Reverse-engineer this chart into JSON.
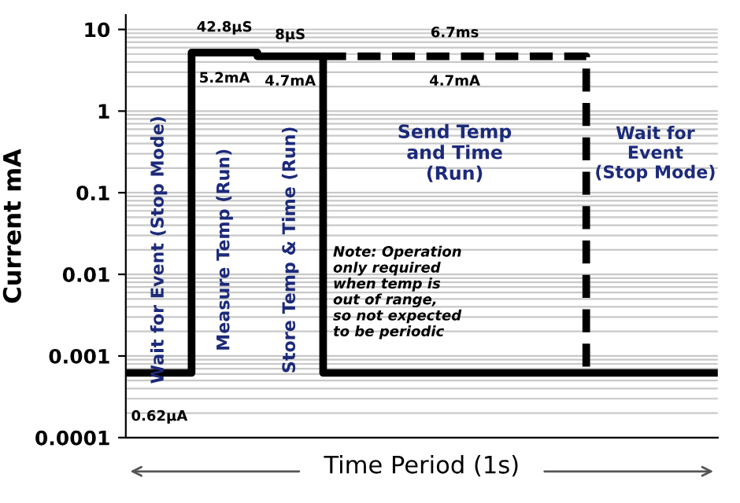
{
  "chart_data": {
    "type": "step",
    "ylabel": "Current mA",
    "xlabel": "Time Period (1s)",
    "categories": [
      null,
      null,
      null,
      null,
      null,
      null,
      null,
      null,
      null,
      null
    ],
    "series": [
      {
        "color": "#000000",
        "line_style": "solid",
        "values": [
          0.00062,
          5.2,
          4.7,
          0.00062,
          0.00062,
          0.00062,
          0.00062,
          0.00062,
          0.00062,
          0.00062
        ]
      },
      {
        "color": "#000000",
        "line_style": "dashed",
        "values": [
          null,
          null,
          null,
          4.7,
          4.7,
          4.7,
          4.7,
          0.00062,
          null,
          null
        ]
      }
    ],
    "log": true,
    "ylim": [
      0.0001,
      15
    ],
    "yticks": [
      0.0001,
      0.001,
      0.01,
      0.1,
      1,
      10
    ],
    "tick_labels": "y",
    "grid": "y",
    "annotations": [
      "42.8µS",
      "5.2mA",
      "8µS",
      "4.7mA",
      "6.7ms",
      "4.7mA",
      "0.62µA",
      "Wait for Event (Stop Mode)",
      "Measure Temp (Run)",
      "Store Temp & Time (Run)",
      "Send Temp\nand Time\n(Run)",
      "Note: Operation\nonly required\nwhen temp is\nout of range,\nso not expected\nto be periodic",
      "Wait for\nEvent\n(Stop Mode)"
    ]
  }
}
